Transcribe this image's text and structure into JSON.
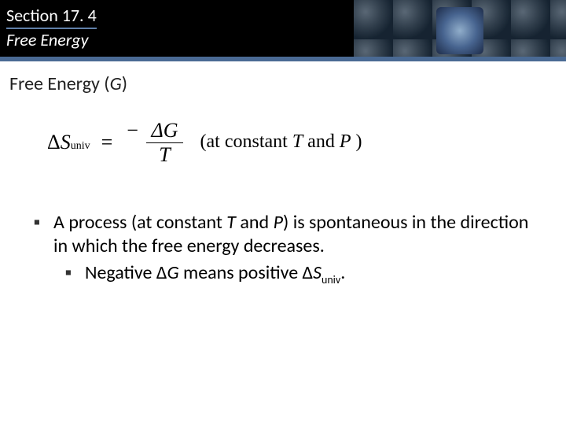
{
  "header": {
    "section_label": "Section 17. 4",
    "section_title": "Free Energy",
    "bg_color": "#000000",
    "bar_color": "#4a6a94",
    "text_color": "#ffffff"
  },
  "subtitle": {
    "prefix": "Free Energy (",
    "symbol": "G",
    "suffix": ")"
  },
  "equation": {
    "lhs_delta": "Δ",
    "lhs_var": "S",
    "lhs_sub": "univ",
    "eq": "=",
    "minus": "−",
    "num_delta": "Δ",
    "num_var": "G",
    "den_var": "T",
    "cond_open": "(at constant ",
    "cond_T": "T",
    "cond_and": " and ",
    "cond_P": "P",
    "cond_close": " )"
  },
  "bullets": {
    "marker": "▪",
    "item1_a": "A process (at constant ",
    "item1_T": "T",
    "item1_b": " and ",
    "item1_P": "P",
    "item1_c": ") is spontaneous in the direction in which the free energy decreases.",
    "item2_a": "Negative Δ",
    "item2_G": "G",
    "item2_b": " means positive Δ",
    "item2_S": "S",
    "item2_sub": "univ",
    "item2_c": "."
  },
  "colors": {
    "text": "#000000",
    "background": "#ffffff"
  }
}
